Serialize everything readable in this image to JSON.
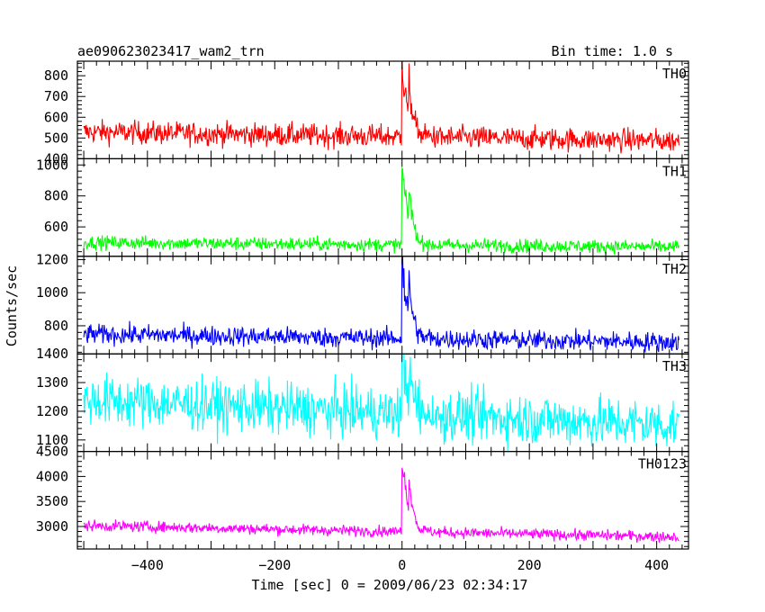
{
  "title_left": "ae090623023417_wam2_trn",
  "title_right": "Bin time: 1.0 s",
  "xlabel": "Time [sec] 0 = 2009/06/23 02:34:17",
  "ylabel": "Counts/sec",
  "chart_data": {
    "type": "line",
    "x_range": [
      -510,
      450
    ],
    "x_ticks": [
      -400,
      -200,
      0,
      200,
      400
    ],
    "x_tick_labels": [
      "−400",
      "−200",
      "0",
      "200",
      "400"
    ],
    "bin_time_s": 1.0,
    "grid": false,
    "panels": [
      {
        "name": "TH0",
        "color": "#ff0000",
        "ylim": [
          400,
          870
        ],
        "yticks": [
          400,
          500,
          600,
          700,
          800
        ],
        "baseline_pre": 530,
        "baseline_post": 485,
        "noise": 28,
        "peak": 870,
        "peak_time": 0
      },
      {
        "name": "TH1",
        "color": "#00ff00",
        "ylim": [
          410,
          1040
        ],
        "yticks": [
          400,
          600,
          800,
          1000
        ],
        "baseline_pre": 500,
        "baseline_post": 470,
        "noise": 22,
        "peak": 1040,
        "peak_time": 0
      },
      {
        "name": "TH2",
        "color": "#0000ff",
        "ylim": [
          630,
          1220
        ],
        "yticks": [
          800,
          1000,
          1200
        ],
        "baseline_pre": 750,
        "baseline_post": 700,
        "noise": 30,
        "peak": 1220,
        "peak_time": 0
      },
      {
        "name": "TH3",
        "color": "#00ffff",
        "ylim": [
          1060,
          1400
        ],
        "yticks": [
          1100,
          1200,
          1300,
          1400
        ],
        "baseline_pre": 1240,
        "baseline_post": 1150,
        "noise": 45,
        "peak": 1390,
        "peak_time": 0
      },
      {
        "name": "TH0123",
        "color": "#ff00ff",
        "ylim": [
          2550,
          4500
        ],
        "yticks": [
          3000,
          3500,
          4000,
          4500
        ],
        "baseline_pre": 3020,
        "baseline_post": 2790,
        "noise": 55,
        "peak": 4500,
        "peak_time": 0
      }
    ]
  }
}
